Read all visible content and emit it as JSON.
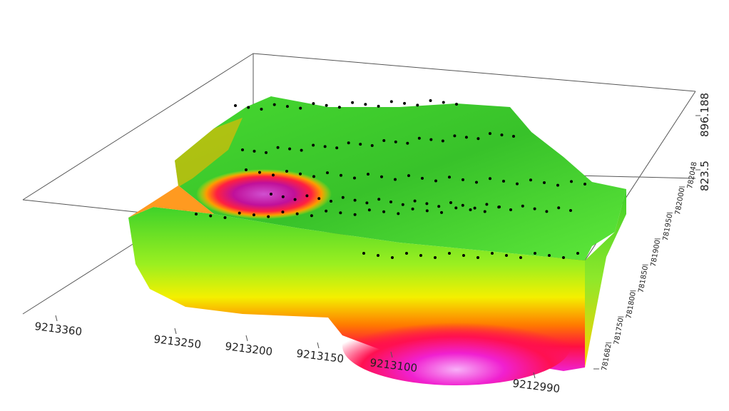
{
  "axes": {
    "x": {
      "ticks": [
        "9213360",
        "9213250",
        "9213200",
        "9213150",
        "9213100",
        "9212990"
      ]
    },
    "y": {
      "ticks": [
        "781682",
        "781750",
        "781800",
        "781850",
        "781900",
        "781950",
        "782000",
        "782048"
      ]
    },
    "z": {
      "ticks": [
        "823.5",
        "896.188"
      ]
    }
  }
}
